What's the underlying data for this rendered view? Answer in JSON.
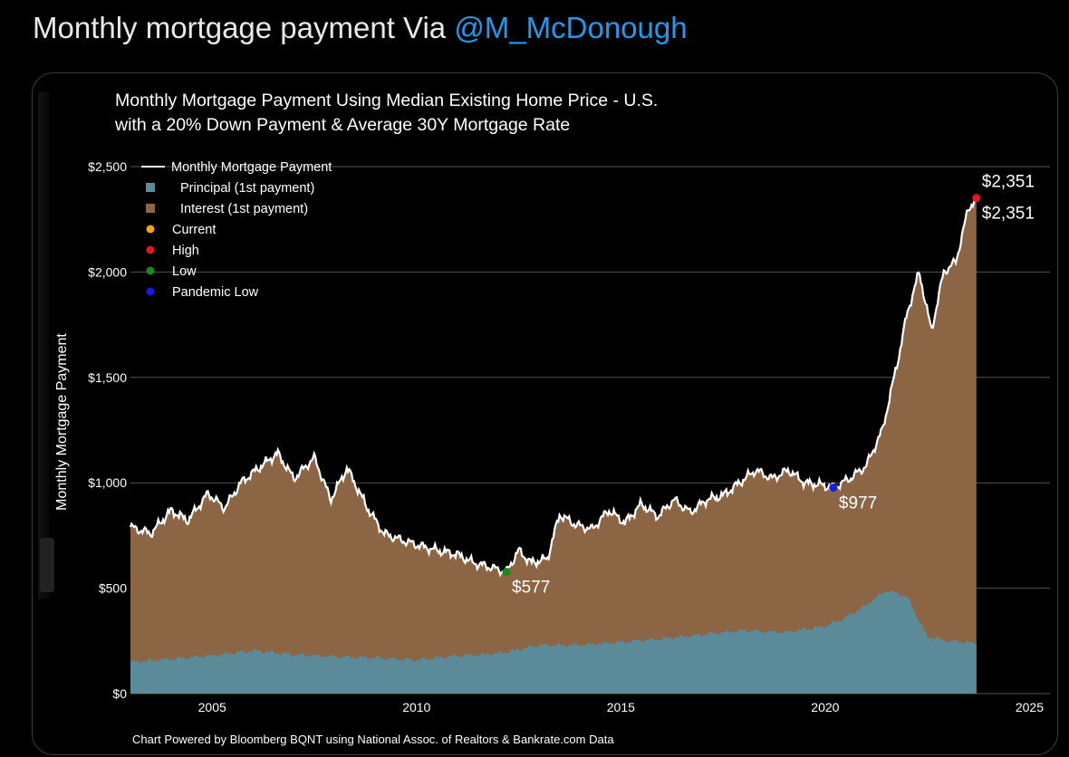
{
  "tweet": {
    "text": "Monthly mortgage payment Via ",
    "handle": "@M_McDonough"
  },
  "chart_data": {
    "type": "area",
    "title_line1": "Monthly Mortgage Payment Using Median Existing Home Price - U.S.",
    "title_line2": "with a 20% Down Payment & Average 30Y Mortgage Rate",
    "ylabel": "Monthly Mortgage Payment",
    "xlabel": "",
    "xlim": [
      2003.0,
      2025.5
    ],
    "ylim": [
      0,
      2500
    ],
    "x_ticks": [
      2005,
      2010,
      2015,
      2020,
      2025
    ],
    "x_tick_labels": [
      "2005",
      "2010",
      "2015",
      "2020",
      "2025"
    ],
    "y_ticks": [
      0,
      500,
      1000,
      1500,
      2000,
      2500
    ],
    "y_tick_labels": [
      "$0",
      "$500",
      "$1,000",
      "$1,500",
      "$2,000",
      "$2,500"
    ],
    "grid": true,
    "legend_position": "top-left",
    "legend": [
      {
        "label": "Monthly Mortgage Payment",
        "kind": "line",
        "color": "#ffffff"
      },
      {
        "label": "Principal (1st payment)",
        "kind": "square",
        "color": "#5b8a99"
      },
      {
        "label": "Interest (1st payment)",
        "kind": "square",
        "color": "#8c6544"
      },
      {
        "label": "Current",
        "kind": "dot",
        "color": "#f2a11d"
      },
      {
        "label": "High",
        "kind": "dot",
        "color": "#e01a1a"
      },
      {
        "label": "Low",
        "kind": "dot",
        "color": "#1a8a1a"
      },
      {
        "label": "Pandemic Low",
        "kind": "dot",
        "color": "#1a1ae0"
      }
    ],
    "colors": {
      "total_line": "#ffffff",
      "principal": "#5b8a99",
      "interest": "#8c6544",
      "grid": "#555555"
    },
    "series": [
      {
        "name": "Monthly Mortgage Payment",
        "x": [
          2003.0,
          2003.5,
          2004.0,
          2004.4,
          2004.9,
          2005.3,
          2005.7,
          2006.2,
          2006.6,
          2007.0,
          2007.5,
          2007.9,
          2008.3,
          2008.8,
          2009.2,
          2009.6,
          2010.1,
          2010.5,
          2011.0,
          2011.4,
          2011.8,
          2012.2,
          2012.5,
          2012.8,
          2013.2,
          2013.5,
          2013.9,
          2014.3,
          2014.7,
          2015.1,
          2015.5,
          2015.9,
          2016.3,
          2016.7,
          2017.1,
          2017.5,
          2017.9,
          2018.3,
          2018.7,
          2019.1,
          2019.5,
          2019.9,
          2020.2,
          2020.6,
          2021.0,
          2021.4,
          2021.8,
          2022.0,
          2022.3,
          2022.6,
          2022.9,
          2023.2,
          2023.5,
          2023.7
        ],
        "y": [
          790,
          760,
          870,
          820,
          950,
          880,
          1000,
          1080,
          1140,
          1020,
          1120,
          920,
          1070,
          880,
          760,
          730,
          700,
          680,
          660,
          620,
          600,
          577,
          680,
          620,
          640,
          850,
          800,
          780,
          870,
          810,
          900,
          840,
          920,
          860,
          920,
          940,
          1000,
          1060,
          1020,
          1060,
          1000,
          990,
          977,
          1020,
          1080,
          1250,
          1600,
          1800,
          2000,
          1720,
          2000,
          2050,
          2300,
          2351
        ]
      },
      {
        "name": "Principal (1st payment)",
        "x": [
          2003.0,
          2004.0,
          2005.0,
          2006.0,
          2007.0,
          2008.0,
          2009.0,
          2010.0,
          2011.0,
          2012.0,
          2013.0,
          2014.0,
          2015.0,
          2016.0,
          2017.0,
          2018.0,
          2019.0,
          2020.0,
          2020.5,
          2021.0,
          2021.5,
          2022.0,
          2022.5,
          2023.0,
          2023.7
        ],
        "y": [
          150,
          165,
          180,
          205,
          185,
          175,
          170,
          160,
          180,
          190,
          230,
          230,
          245,
          260,
          280,
          300,
          290,
          320,
          360,
          420,
          490,
          460,
          270,
          250,
          240
        ]
      }
    ],
    "annotations": [
      {
        "label": "$2,351",
        "x": 2023.7,
        "y": 2351,
        "marker": "High"
      },
      {
        "label": "$2,351",
        "x": 2023.7,
        "y": 2351,
        "marker": "Current"
      },
      {
        "label": "$977",
        "x": 2020.2,
        "y": 977,
        "marker": "Pandemic Low"
      },
      {
        "label": "$577",
        "x": 2012.2,
        "y": 577,
        "marker": "Low"
      }
    ],
    "footer": "Chart Powered by Bloomberg BQNT using National Assoc. of Realtors & Bankrate.com Data"
  }
}
